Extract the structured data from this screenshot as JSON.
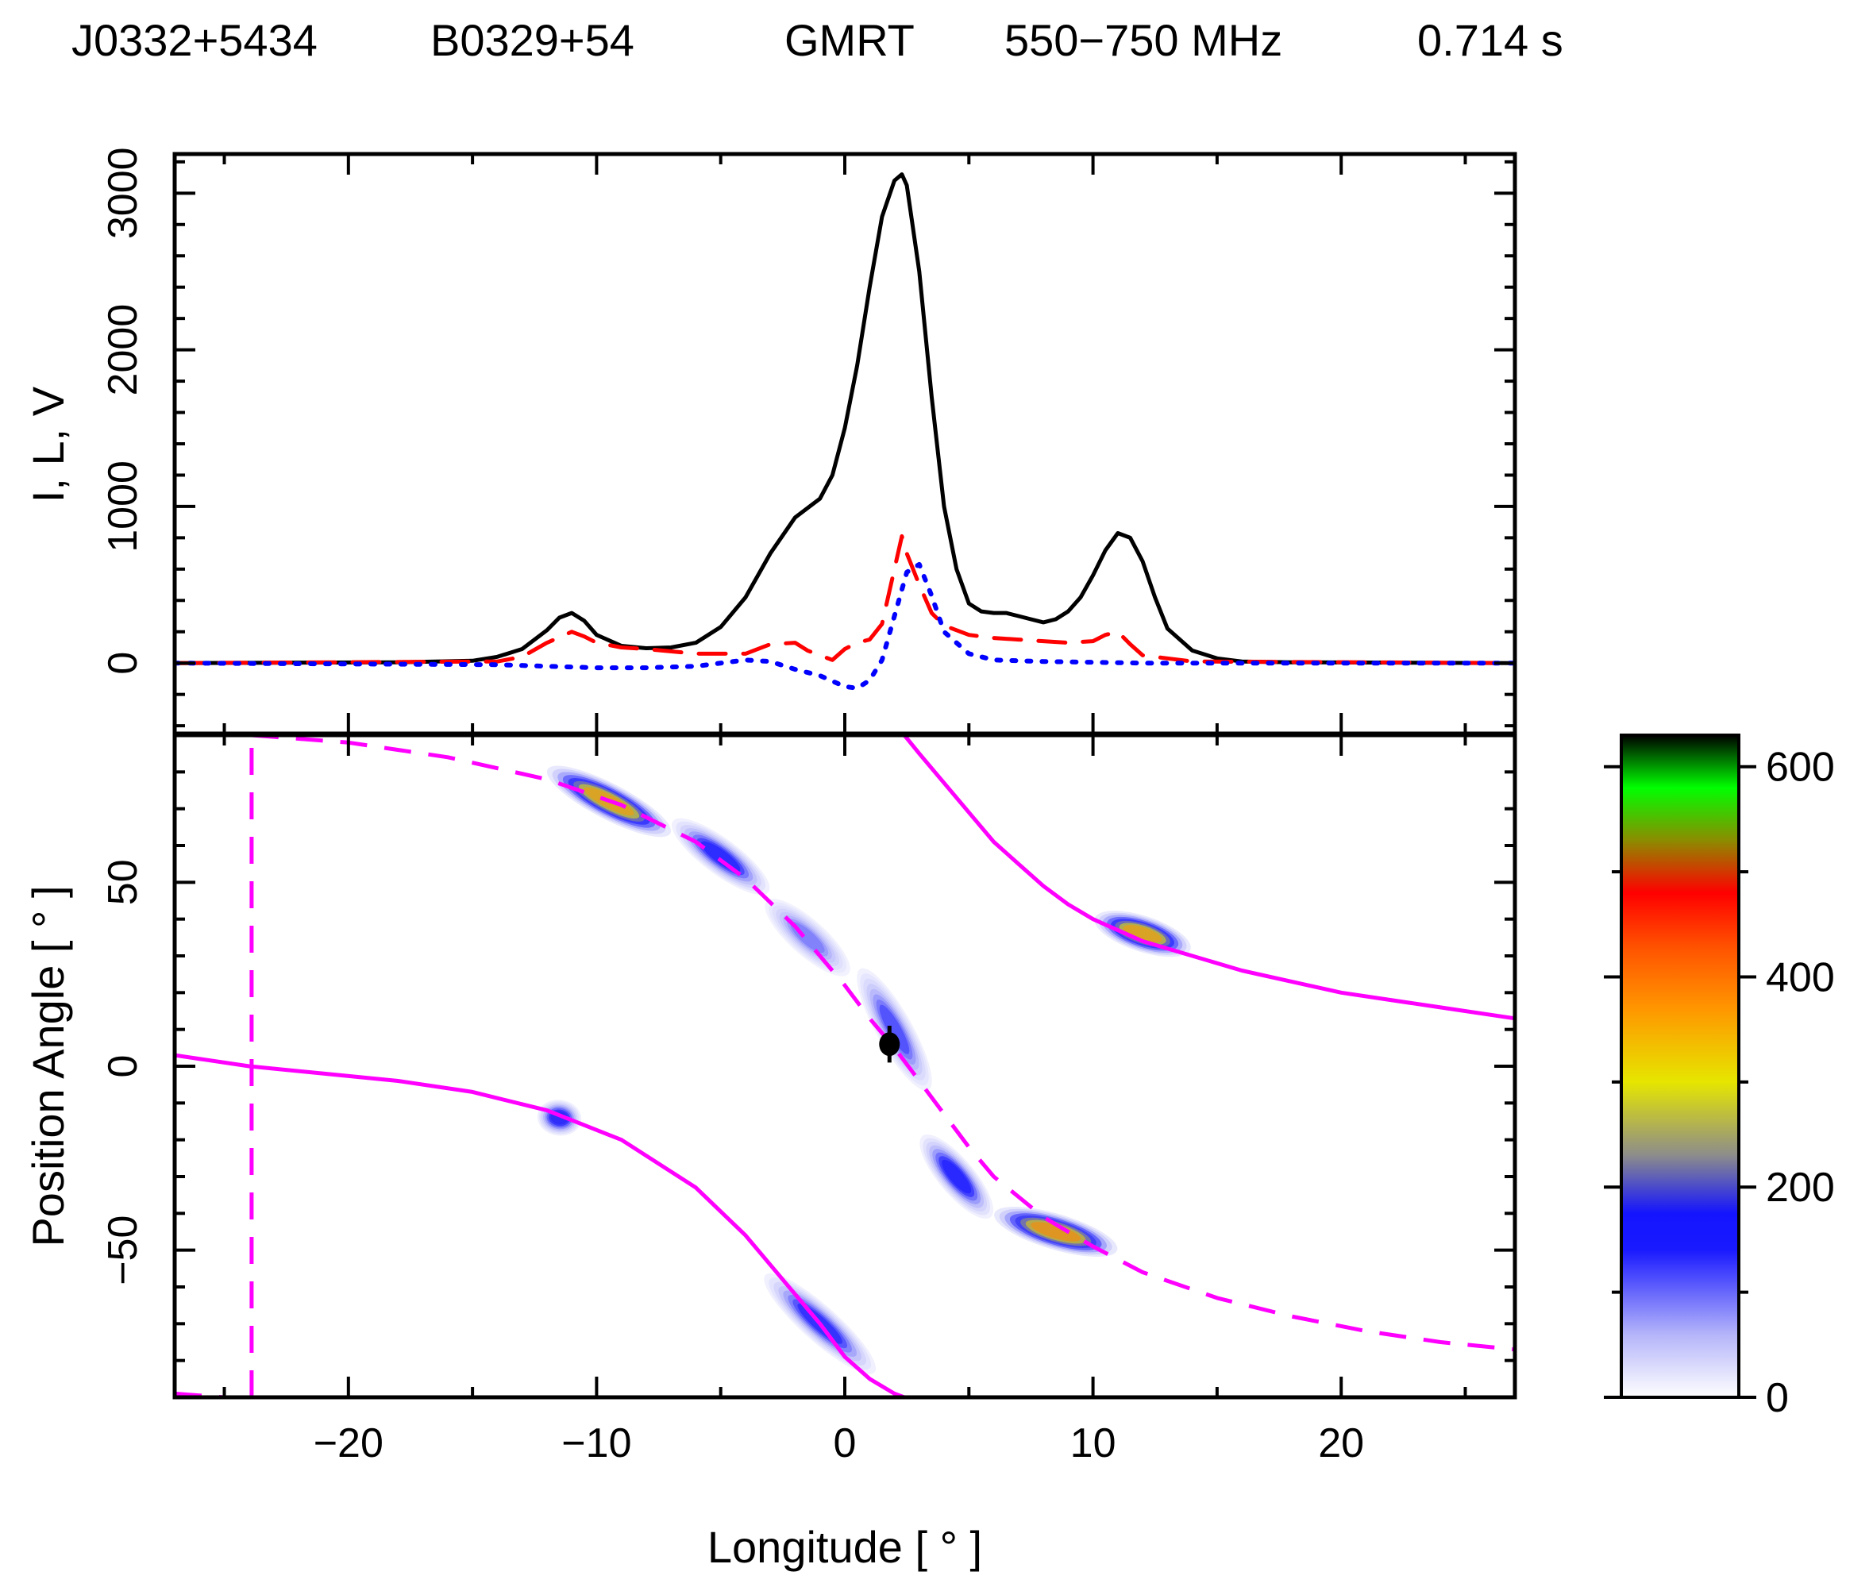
{
  "title": {
    "jname": "J0332+5434",
    "bname": "B0329+54",
    "telescope": "GMRT",
    "band": "550−750 MHz",
    "period": "0.714 s"
  },
  "chart_data": [
    {
      "type": "line",
      "panel": "profile",
      "ylabel": "I, L, V",
      "xlim": [
        -27,
        27
      ],
      "ylim": [
        -450,
        3250
      ],
      "yticks": [
        0,
        1000,
        2000,
        3000
      ],
      "yticklabels": [
        "0",
        "1000",
        "2000",
        "3000"
      ],
      "xticks": [
        -20,
        -10,
        0,
        10,
        20
      ],
      "series": [
        {
          "name": "I",
          "color": "#000000",
          "dash": "solid",
          "x": [
            -27,
            -18,
            -15,
            -14,
            -13,
            -12,
            -11.5,
            -11,
            -10.5,
            -10,
            -9,
            -8,
            -7,
            -6,
            -5,
            -4,
            -3,
            -2,
            -1,
            -0.5,
            0,
            0.5,
            1,
            1.5,
            2,
            2.3,
            2.5,
            3,
            3.5,
            4,
            4.5,
            5,
            5.5,
            6,
            6.5,
            7,
            7.5,
            8,
            8.5,
            9,
            9.5,
            10,
            10.5,
            11,
            11.5,
            12,
            12.5,
            13,
            14,
            15,
            16,
            18,
            27
          ],
          "y": [
            0,
            5,
            15,
            40,
            90,
            210,
            290,
            320,
            270,
            180,
            110,
            95,
            100,
            130,
            230,
            420,
            700,
            930,
            1050,
            1200,
            1500,
            1900,
            2400,
            2850,
            3080,
            3120,
            3050,
            2500,
            1700,
            1000,
            600,
            380,
            330,
            320,
            320,
            300,
            280,
            260,
            280,
            330,
            420,
            560,
            720,
            830,
            800,
            650,
            420,
            220,
            80,
            30,
            10,
            5,
            0
          ]
        },
        {
          "name": "L",
          "color": "#ff0000",
          "dash": "dashed",
          "x": [
            -27,
            -14,
            -13,
            -12,
            -11,
            -10.5,
            -10,
            -9,
            -8,
            -6,
            -4,
            -3,
            -2,
            -1.5,
            -1,
            -0.5,
            0,
            0.5,
            1,
            1.5,
            2,
            2.3,
            2.5,
            3,
            3.5,
            4,
            5,
            6,
            7,
            8,
            9,
            10,
            10.5,
            11,
            11.5,
            12,
            13,
            14,
            27
          ],
          "y": [
            0,
            10,
            40,
            130,
            200,
            170,
            130,
            100,
            90,
            60,
            60,
            120,
            130,
            80,
            50,
            20,
            90,
            130,
            150,
            250,
            600,
            810,
            700,
            500,
            320,
            240,
            180,
            160,
            150,
            140,
            130,
            140,
            180,
            200,
            120,
            50,
            30,
            10,
            0
          ]
        },
        {
          "name": "V",
          "color": "#0000ff",
          "dash": "dotted",
          "x": [
            -27,
            -14,
            -12,
            -10,
            -8,
            -6,
            -4,
            -3,
            -2,
            -1,
            0,
            0.5,
            1,
            1.5,
            2,
            2.5,
            3,
            3.5,
            4,
            5,
            6,
            8,
            10,
            12,
            27
          ],
          "y": [
            0,
            -10,
            -20,
            -30,
            -30,
            -20,
            20,
            10,
            -40,
            -80,
            -150,
            -160,
            -110,
            20,
            300,
            580,
            630,
            430,
            200,
            60,
            20,
            10,
            5,
            0,
            0
          ]
        }
      ]
    },
    {
      "type": "heatmap",
      "panel": "position-angle",
      "xlabel": "Longitude [ ° ]",
      "ylabel": "Position Angle [ ° ]",
      "xlim": [
        -27,
        27
      ],
      "ylim": [
        -90,
        90
      ],
      "xticks": [
        -20,
        -10,
        0,
        10,
        20
      ],
      "xticklabels": [
        "−20",
        "−10",
        "0",
        "10",
        "20"
      ],
      "yticks": [
        -50,
        0,
        50
      ],
      "yticklabels": [
        "−50",
        "0",
        "50"
      ],
      "density_blobs": [
        {
          "x": -9.5,
          "y": 72,
          "peak": 380,
          "extent_deg": 4.5,
          "slope": -3.5
        },
        {
          "x": -5,
          "y": 57,
          "peak": 160,
          "extent_deg": 3.5,
          "slope": -5
        },
        {
          "x": -1.5,
          "y": 35,
          "peak": 90,
          "extent_deg": 3,
          "slope": -6
        },
        {
          "x": 2,
          "y": 10,
          "peak": 120,
          "extent_deg": 2.5,
          "slope": -12
        },
        {
          "x": 4.5,
          "y": -30,
          "peak": 170,
          "extent_deg": 2.5,
          "slope": -8
        },
        {
          "x": 8.5,
          "y": -45,
          "peak": 400,
          "extent_deg": 4.5,
          "slope": -2
        },
        {
          "x": 12,
          "y": 36,
          "peak": 380,
          "extent_deg": 3.5,
          "slope": -2.2
        },
        {
          "x": -11.5,
          "y": -14,
          "peak": 180,
          "extent_deg": 1.6,
          "slope": -1
        },
        {
          "x": -1,
          "y": -70,
          "peak": 150,
          "extent_deg": 4,
          "slope": -6
        }
      ],
      "rvm_curves": [
        {
          "name": "RVM fit (primary)",
          "color": "#ff00ff",
          "dash": "solid",
          "segments": [
            {
              "x": [
                -27,
                -24,
                -21,
                -18,
                -15,
                -12,
                -9,
                -6,
                -4,
                -2,
                -1,
                0,
                1,
                2,
                2.4
              ],
              "y": [
                3,
                0,
                -2,
                -4,
                -7,
                -12,
                -20,
                -33,
                -46,
                -62,
                -70,
                -79,
                -85,
                -89,
                -90
              ]
            },
            {
              "x": [
                2.4,
                3,
                4,
                5,
                6,
                7,
                8,
                9,
                10,
                12,
                14,
                16,
                18,
                20,
                22,
                24,
                27
              ],
              "y": [
                90,
                85,
                77,
                69,
                61,
                55,
                49,
                44,
                40,
                34,
                30,
                26,
                23,
                20,
                18,
                16,
                13
              ]
            }
          ]
        },
        {
          "name": "RVM fit (orthogonal)",
          "color": "#ff00ff",
          "dash": "dashed",
          "segments": [
            {
              "x": [
                -27,
                -26,
                -25,
                -24.1
              ],
              "y": [
                -89,
                -89.5,
                -90,
                -90
              ]
            },
            {
              "x": [
                -23.9,
                -23.9
              ],
              "y": [
                -90,
                90
              ]
            },
            {
              "x": [
                -23.9,
                -20,
                -16,
                -12,
                -9,
                -6,
                -4,
                -2,
                -1,
                0,
                1,
                2,
                3,
                4,
                5,
                6,
                8,
                10,
                12,
                15,
                18,
                21,
                24,
                27
              ],
              "y": [
                90,
                88,
                84,
                78,
                71,
                61,
                51,
                38,
                30,
                22,
                13,
                5,
                -4,
                -13,
                -22,
                -30,
                -41,
                -49,
                -56,
                -63,
                -68,
                -72,
                -75,
                -77
              ]
            }
          ]
        }
      ],
      "marker": {
        "x": 1.8,
        "y": 6,
        "y_err": 5
      }
    },
    {
      "type": "colorbar",
      "panel": "colorbar",
      "range": [
        0,
        630
      ],
      "ticks": [
        0,
        200,
        400,
        600
      ],
      "ticklabels": [
        "0",
        "200",
        "400",
        "600"
      ],
      "stops": [
        {
          "v": 0,
          "color": "#ffffff"
        },
        {
          "v": 60,
          "color": "#b4b4fa"
        },
        {
          "v": 140,
          "color": "#1a1aff"
        },
        {
          "v": 175,
          "color": "#1414ff"
        },
        {
          "v": 230,
          "color": "#8c8c8c"
        },
        {
          "v": 300,
          "color": "#e6e600"
        },
        {
          "v": 370,
          "color": "#ff9600"
        },
        {
          "v": 430,
          "color": "#ff5000"
        },
        {
          "v": 480,
          "color": "#ff0000"
        },
        {
          "v": 530,
          "color": "#8c8c00"
        },
        {
          "v": 580,
          "color": "#00ff00"
        },
        {
          "v": 630,
          "color": "#000000"
        }
      ]
    }
  ]
}
